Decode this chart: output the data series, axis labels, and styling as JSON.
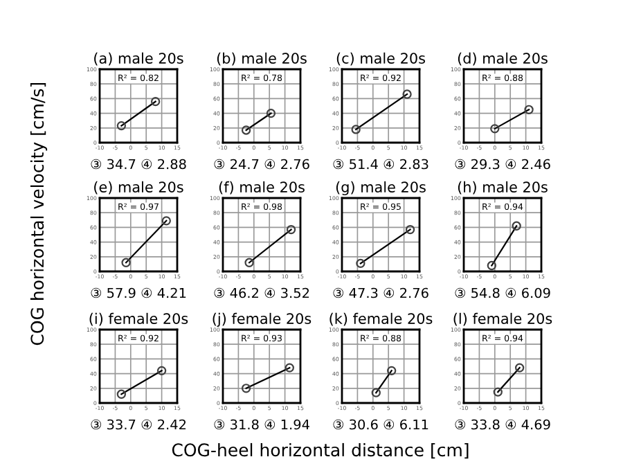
{
  "chart_data": [
    {
      "type": "line",
      "title": "(a) male 20s",
      "xlabel": "COG-heel horizontal distance [cm]",
      "ylabel": "COG horizontal velocity [cm/s]",
      "series": [
        {
          "x": [
            -3,
            8
          ],
          "values": [
            23,
            56
          ],
          "color": "#404040"
        }
      ],
      "annotations": [
        "R² = 0.82",
        "③ 34.7 ④ 2.88"
      ],
      "xlim": [
        -10,
        15
      ],
      "xticks": [
        -10,
        -5,
        0,
        5,
        10,
        15
      ],
      "ylim": [
        0,
        100
      ],
      "yticks": [
        0,
        20,
        40,
        60,
        80,
        100
      ],
      "grid": true,
      "marker": "circle",
      "line_style": "solid"
    },
    {
      "type": "line",
      "title": "(b) male 20s",
      "series": [
        {
          "x": [
            -2.5,
            5.5
          ],
          "values": [
            17,
            40
          ],
          "color": "#404040"
        }
      ],
      "annotations": [
        "R² = 0.78",
        "③ 24.7 ④ 2.76"
      ],
      "xlim": [
        -10,
        15
      ],
      "xticks": [
        -10,
        -5,
        0,
        5,
        10,
        15
      ],
      "ylim": [
        0,
        100
      ],
      "yticks": [
        0,
        20,
        40,
        60,
        80,
        100
      ],
      "grid": true,
      "marker": "circle",
      "line_style": "solid"
    },
    {
      "type": "line",
      "title": "(c) male 20s",
      "series": [
        {
          "x": [
            -5.5,
            11
          ],
          "values": [
            18,
            66
          ],
          "color": "#404040"
        }
      ],
      "annotations": [
        "R² = 0.92",
        "③ 51.4 ④ 2.83"
      ],
      "xlim": [
        -10,
        15
      ],
      "xticks": [
        -10,
        -5,
        0,
        5,
        10,
        15
      ],
      "ylim": [
        0,
        100
      ],
      "yticks": [
        0,
        20,
        40,
        60,
        80,
        100
      ],
      "grid": true,
      "marker": "circle",
      "line_style": "solid"
    },
    {
      "type": "line",
      "title": "(d) male 20s",
      "series": [
        {
          "x": [
            0,
            11
          ],
          "values": [
            19,
            45
          ],
          "color": "#404040"
        }
      ],
      "annotations": [
        "R² = 0.88",
        "③ 29.3 ④ 2.46"
      ],
      "xlim": [
        -10,
        15
      ],
      "xticks": [
        -10,
        -5,
        0,
        5,
        10,
        15
      ],
      "ylim": [
        0,
        100
      ],
      "yticks": [
        0,
        20,
        40,
        60,
        80,
        100
      ],
      "grid": true,
      "marker": "circle",
      "line_style": "solid"
    },
    {
      "type": "line",
      "title": "(e) male 20s",
      "series": [
        {
          "x": [
            -1.5,
            11.5
          ],
          "values": [
            12,
            69
          ],
          "color": "#404040"
        }
      ],
      "annotations": [
        "R² = 0.97",
        "③ 57.9 ④ 4.21"
      ],
      "xlim": [
        -10,
        15
      ],
      "xticks": [
        -10,
        -5,
        0,
        5,
        10,
        15
      ],
      "ylim": [
        0,
        100
      ],
      "yticks": [
        0,
        20,
        40,
        60,
        80,
        100
      ],
      "grid": true,
      "marker": "circle",
      "line_style": "solid"
    },
    {
      "type": "line",
      "title": "(f) male 20s",
      "series": [
        {
          "x": [
            -1.5,
            12
          ],
          "values": [
            12,
            57
          ],
          "color": "#404040"
        }
      ],
      "annotations": [
        "R² = 0.98",
        "③ 46.2 ④ 3.52"
      ],
      "xlim": [
        -10,
        15
      ],
      "xticks": [
        -10,
        -5,
        0,
        5,
        10,
        15
      ],
      "ylim": [
        0,
        100
      ],
      "yticks": [
        0,
        20,
        40,
        60,
        80,
        100
      ],
      "grid": true,
      "marker": "circle",
      "line_style": "solid"
    },
    {
      "type": "line",
      "title": "(g) male 20s",
      "series": [
        {
          "x": [
            -4,
            12
          ],
          "values": [
            11,
            57
          ],
          "color": "#404040"
        }
      ],
      "annotations": [
        "R² = 0.95",
        "③ 47.3 ④ 2.76"
      ],
      "xlim": [
        -10,
        15
      ],
      "xticks": [
        -10,
        -5,
        0,
        5,
        10,
        15
      ],
      "ylim": [
        0,
        100
      ],
      "yticks": [
        0,
        20,
        40,
        60,
        80,
        100
      ],
      "grid": true,
      "marker": "circle",
      "line_style": "solid"
    },
    {
      "type": "line",
      "title": "(h) male 20s",
      "series": [
        {
          "x": [
            -1,
            7
          ],
          "values": [
            8,
            62
          ],
          "color": "#404040"
        }
      ],
      "annotations": [
        "R² = 0.94",
        "③ 54.8 ④ 6.09"
      ],
      "xlim": [
        -10,
        15
      ],
      "xticks": [
        -10,
        -5,
        0,
        5,
        10,
        15
      ],
      "ylim": [
        0,
        100
      ],
      "yticks": [
        0,
        20,
        40,
        60,
        80,
        100
      ],
      "grid": true,
      "marker": "circle",
      "line_style": "solid"
    },
    {
      "type": "line",
      "title": "(i) female 20s",
      "series": [
        {
          "x": [
            -3,
            10
          ],
          "values": [
            12,
            44
          ],
          "color": "#404040"
        }
      ],
      "annotations": [
        "R² = 0.92",
        "③ 33.7 ④ 2.42"
      ],
      "xlim": [
        -10,
        15
      ],
      "xticks": [
        -10,
        -5,
        0,
        5,
        10,
        15
      ],
      "ylim": [
        0,
        100
      ],
      "yticks": [
        0,
        20,
        40,
        60,
        80,
        100
      ],
      "grid": true,
      "marker": "circle",
      "line_style": "solid"
    },
    {
      "type": "line",
      "title": "(j) female 20s",
      "series": [
        {
          "x": [
            -2.5,
            11.5
          ],
          "values": [
            20,
            48
          ],
          "color": "#404040"
        }
      ],
      "annotations": [
        "R² = 0.93",
        "③ 31.8 ④ 1.94"
      ],
      "xlim": [
        -10,
        15
      ],
      "xticks": [
        -10,
        -5,
        0,
        5,
        10,
        15
      ],
      "ylim": [
        0,
        100
      ],
      "yticks": [
        0,
        20,
        40,
        60,
        80,
        100
      ],
      "grid": true,
      "marker": "circle",
      "line_style": "solid"
    },
    {
      "type": "line",
      "title": "(k) female 20s",
      "series": [
        {
          "x": [
            1,
            6
          ],
          "values": [
            14,
            44
          ],
          "color": "#404040"
        }
      ],
      "annotations": [
        "R² = 0.88",
        "③ 30.6 ④ 6.11"
      ],
      "xlim": [
        -10,
        15
      ],
      "xticks": [
        -10,
        -5,
        0,
        5,
        10,
        15
      ],
      "ylim": [
        0,
        100
      ],
      "yticks": [
        0,
        20,
        40,
        60,
        80,
        100
      ],
      "grid": true,
      "marker": "circle",
      "line_style": "solid"
    },
    {
      "type": "line",
      "title": "(l) female 20s",
      "series": [
        {
          "x": [
            1,
            8
          ],
          "values": [
            15,
            48
          ],
          "color": "#404040"
        }
      ],
      "annotations": [
        "R² = 0.94",
        "③ 33.8 ④ 4.69"
      ],
      "xlim": [
        -10,
        15
      ],
      "xticks": [
        -10,
        -5,
        0,
        5,
        10,
        15
      ],
      "ylim": [
        0,
        100
      ],
      "yticks": [
        0,
        20,
        40,
        60,
        80,
        100
      ],
      "grid": true,
      "marker": "circle",
      "line_style": "solid"
    }
  ]
}
